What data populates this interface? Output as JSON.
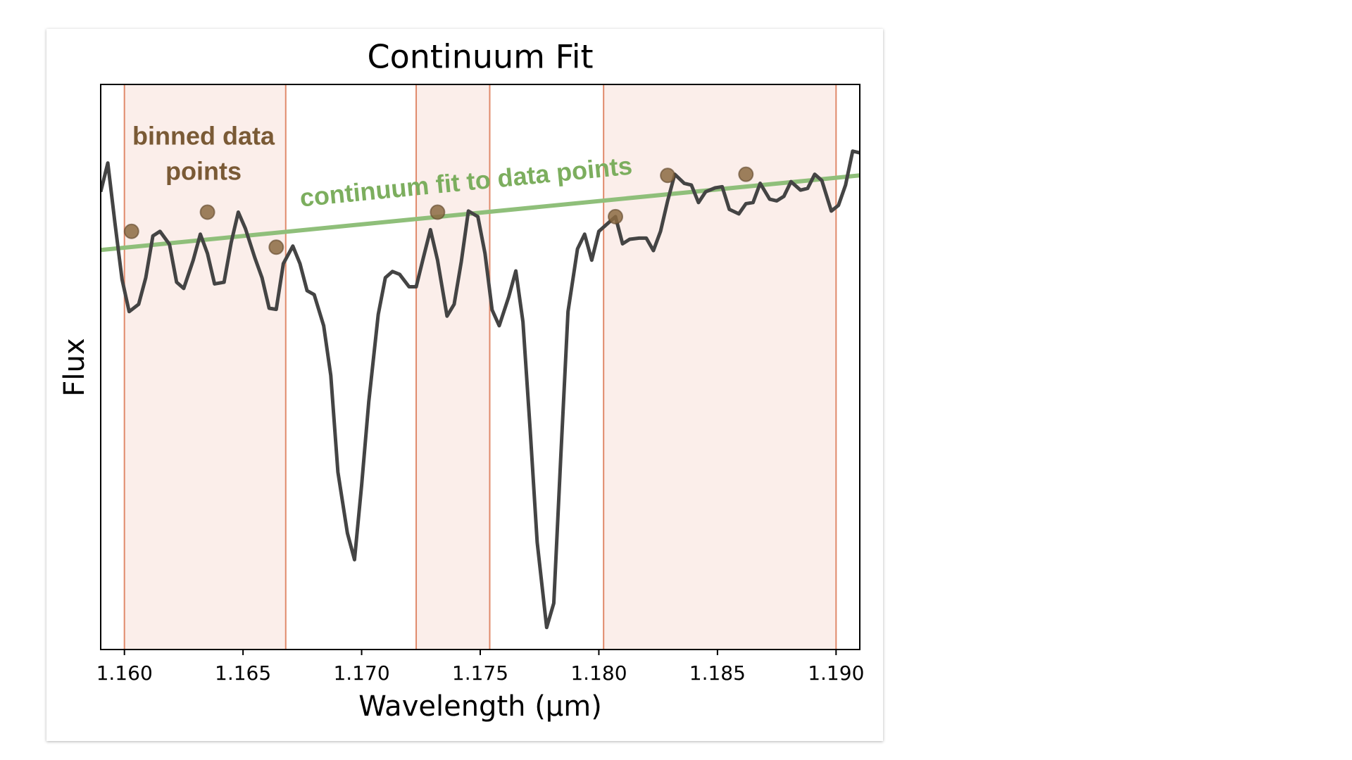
{
  "chart_data": {
    "type": "line",
    "title": "Continuum Fit",
    "xlabel": "Wavelength (µm)",
    "ylabel": "Flux",
    "xlim": [
      1.159,
      1.191
    ],
    "ylim": [
      0,
      1
    ],
    "xticks": [
      {
        "value": 1.16,
        "label": "1.160"
      },
      {
        "value": 1.165,
        "label": "1.165"
      },
      {
        "value": 1.17,
        "label": "1.170"
      },
      {
        "value": 1.175,
        "label": "1.175"
      },
      {
        "value": 1.18,
        "label": "1.180"
      },
      {
        "value": 1.185,
        "label": "1.185"
      },
      {
        "value": 1.19,
        "label": "1.190"
      }
    ],
    "x": [
      1.159,
      1.1593,
      1.1596,
      1.1599,
      1.1602,
      1.1606,
      1.1609,
      1.1612,
      1.1615,
      1.1619,
      1.1622,
      1.1625,
      1.1629,
      1.1632,
      1.1635,
      1.1638,
      1.1642,
      1.1645,
      1.1648,
      1.1651,
      1.1655,
      1.1658,
      1.1661,
      1.1664,
      1.1667,
      1.1671,
      1.1674,
      1.1677,
      1.168,
      1.1684,
      1.1687,
      1.169,
      1.1694,
      1.1697,
      1.17,
      1.1703,
      1.1707,
      1.171,
      1.1713,
      1.1716,
      1.172,
      1.1723,
      1.1726,
      1.1729,
      1.1732,
      1.1736,
      1.1739,
      1.1742,
      1.1745,
      1.1749,
      1.1752,
      1.1755,
      1.1758,
      1.1762,
      1.1765,
      1.1768,
      1.1771,
      1.1774,
      1.1778,
      1.1781,
      1.1784,
      1.1787,
      1.1791,
      1.1794,
      1.1797,
      1.18,
      1.1804,
      1.1807,
      1.181,
      1.1813,
      1.1817,
      1.182,
      1.1823,
      1.1826,
      1.1829,
      1.1832,
      1.1836,
      1.1839,
      1.1842,
      1.1845,
      1.1849,
      1.1852,
      1.1855,
      1.1859,
      1.1862,
      1.1865,
      1.1868,
      1.1872,
      1.1875,
      1.1878,
      1.1881,
      1.1885,
      1.1888,
      1.1891,
      1.1894,
      1.1898,
      1.1901,
      1.1904,
      1.1907,
      1.191
    ],
    "series": [
      {
        "color": "#444444",
        "values": [
          0.81,
          0.861,
          0.755,
          0.655,
          0.598,
          0.611,
          0.658,
          0.732,
          0.74,
          0.717,
          0.65,
          0.639,
          0.689,
          0.735,
          0.701,
          0.647,
          0.65,
          0.72,
          0.774,
          0.745,
          0.693,
          0.658,
          0.604,
          0.602,
          0.683,
          0.714,
          0.683,
          0.635,
          0.628,
          0.573,
          0.485,
          0.314,
          0.206,
          0.159,
          0.291,
          0.438,
          0.593,
          0.658,
          0.669,
          0.664,
          0.642,
          0.642,
          0.693,
          0.743,
          0.689,
          0.59,
          0.611,
          0.686,
          0.776,
          0.766,
          0.701,
          0.601,
          0.573,
          0.624,
          0.67,
          0.58,
          0.392,
          0.19,
          0.039,
          0.082,
          0.345,
          0.598,
          0.709,
          0.735,
          0.689,
          0.74,
          0.755,
          0.766,
          0.718,
          0.726,
          0.728,
          0.728,
          0.706,
          0.74,
          0.794,
          0.841,
          0.825,
          0.822,
          0.791,
          0.81,
          0.817,
          0.819,
          0.779,
          0.771,
          0.789,
          0.791,
          0.825,
          0.797,
          0.794,
          0.802,
          0.828,
          0.813,
          0.816,
          0.841,
          0.83,
          0.776,
          0.786,
          0.822,
          0.882,
          0.879
        ]
      }
    ],
    "regions": [
      [
        1.16,
        1.1668
      ],
      [
        1.1723,
        1.1754
      ],
      [
        1.1802,
        1.19
      ]
    ],
    "region_color": "#e08a6b",
    "binned_points": {
      "color": "#8b6a42",
      "x": [
        1.1603,
        1.1635,
        1.1664,
        1.1732,
        1.1807,
        1.1829,
        1.1862
      ],
      "values": [
        0.74,
        0.774,
        0.712,
        0.774,
        0.766,
        0.839,
        0.841
      ]
    },
    "fit": {
      "color": "#8fbf7a",
      "x": [
        1.159,
        1.191
      ],
      "values": [
        0.707,
        0.839
      ]
    },
    "annotations": {
      "binned": [
        "binned data",
        "points"
      ],
      "fit": "continuum fit to data points"
    }
  }
}
